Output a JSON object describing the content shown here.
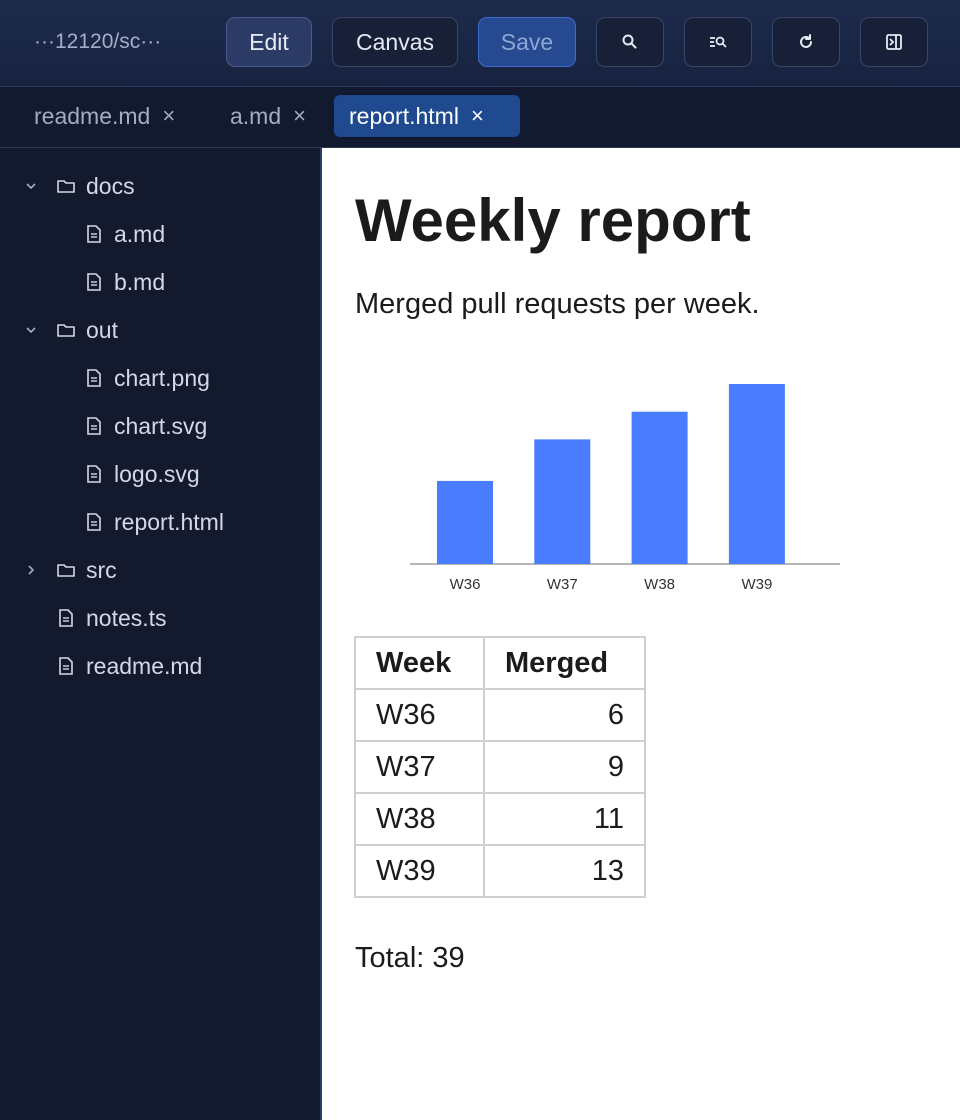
{
  "toolbar": {
    "path": "···12120/sc···",
    "edit_label": "Edit",
    "canvas_label": "Canvas",
    "save_label": "Save",
    "icons": [
      "search-icon",
      "find-replace-icon",
      "refresh-icon",
      "toggle-panel-icon"
    ]
  },
  "tabs": [
    {
      "label": "readme.md",
      "close": "×",
      "active": false
    },
    {
      "label": "a.md",
      "close": "×",
      "active": false
    },
    {
      "label": "report.html",
      "close": "×",
      "active": true
    }
  ],
  "sidebar": {
    "items": [
      {
        "label": "docs",
        "type": "folder",
        "expanded": true
      },
      {
        "label": "a.md",
        "type": "file"
      },
      {
        "label": "b.md",
        "type": "file"
      },
      {
        "label": "out",
        "type": "folder",
        "expanded": true
      },
      {
        "label": "chart.png",
        "type": "file"
      },
      {
        "label": "chart.svg",
        "type": "file"
      },
      {
        "label": "logo.svg",
        "type": "file"
      },
      {
        "label": "report.html",
        "type": "file"
      },
      {
        "label": "src",
        "type": "folder",
        "expanded": false
      },
      {
        "label": "notes.ts",
        "type": "file"
      },
      {
        "label": "readme.md",
        "type": "file"
      }
    ]
  },
  "document": {
    "title": "Weekly report",
    "subtitle": "Merged pull requests per week.",
    "table": {
      "headers": [
        "Week",
        "Merged"
      ],
      "rows": [
        [
          "W36",
          "6"
        ],
        [
          "W37",
          "9"
        ],
        [
          "W38",
          "11"
        ],
        [
          "W39",
          "13"
        ]
      ]
    },
    "total": "Total: 39"
  },
  "chart_data": {
    "type": "bar",
    "categories": [
      "W36",
      "W37",
      "W38",
      "W39"
    ],
    "values": [
      6,
      9,
      11,
      13
    ],
    "title": "",
    "xlabel": "",
    "ylabel": "",
    "ylim": [
      0,
      13
    ],
    "grid": false,
    "bar_color": "#4a7cff"
  },
  "colors": {
    "accent": "#1f4a8f",
    "save": "#27498f",
    "sidebar_bg": "#131a2e",
    "bar": "#4a7cff"
  }
}
